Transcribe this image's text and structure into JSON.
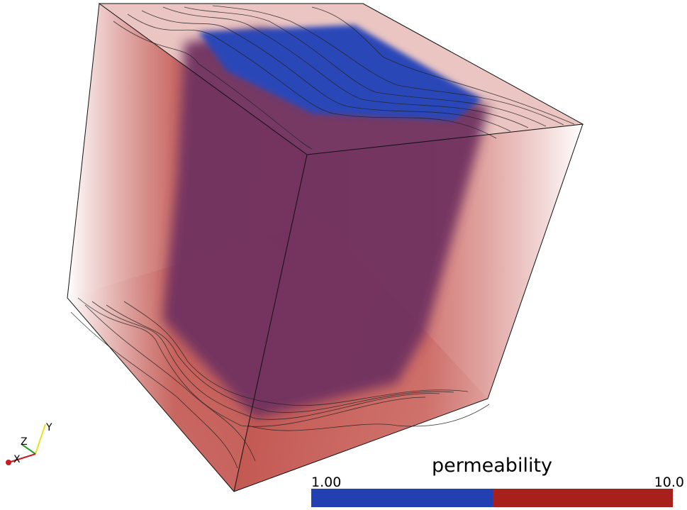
{
  "colorbar": {
    "title": "permeability",
    "min_label": "1.00",
    "max_label": "10.0"
  },
  "orientation_axes": {
    "x": "X",
    "y": "Y",
    "z": "Z"
  }
}
